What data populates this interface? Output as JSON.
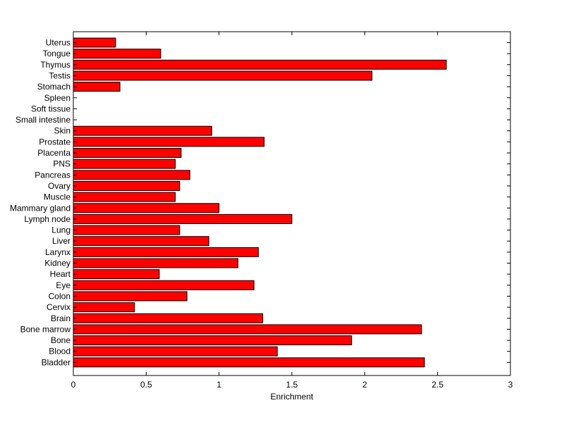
{
  "chart_data": {
    "type": "bar",
    "orientation": "horizontal",
    "title": "",
    "xlabel": "Enrichment",
    "ylabel": "",
    "xlim": [
      0,
      3
    ],
    "xticks": [
      "0",
      "0.5",
      "1",
      "1.5",
      "2",
      "2.5",
      "3"
    ],
    "grid": false,
    "bar_color": "#ff0000",
    "edge_color": "#000000",
    "categories": [
      "Uterus",
      "Tongue",
      "Thymus",
      "Testis",
      "Stomach",
      "Spleen",
      "Soft tissue",
      "Small intestine",
      "Skin",
      "Prostate",
      "Placenta",
      "PNS",
      "Pancreas",
      "Ovary",
      "Muscle",
      "Mammary gland",
      "Lymph node",
      "Lung",
      "Liver",
      "Larynx",
      "Kidney",
      "Heart",
      "Eye",
      "Colon",
      "Cervix",
      "Brain",
      "Bone marrow",
      "Bone",
      "Blood",
      "Bladder"
    ],
    "values": [
      0.29,
      0.6,
      2.56,
      2.05,
      0.32,
      0,
      0,
      0,
      0.95,
      1.31,
      0.74,
      0.7,
      0.8,
      0.73,
      0.7,
      1.0,
      1.5,
      0.73,
      0.93,
      1.27,
      1.13,
      0.59,
      1.24,
      0.78,
      0.42,
      1.3,
      2.39,
      1.91,
      1.4,
      2.41
    ]
  }
}
